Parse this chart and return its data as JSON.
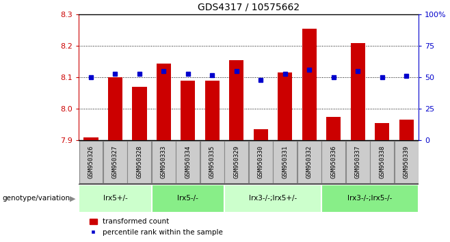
{
  "title": "GDS4317 / 10575662",
  "samples": [
    "GSM950326",
    "GSM950327",
    "GSM950328",
    "GSM950333",
    "GSM950334",
    "GSM950335",
    "GSM950329",
    "GSM950330",
    "GSM950331",
    "GSM950332",
    "GSM950336",
    "GSM950337",
    "GSM950338",
    "GSM950339"
  ],
  "bar_values": [
    7.91,
    8.1,
    8.07,
    8.145,
    8.09,
    8.09,
    8.155,
    7.935,
    8.115,
    8.255,
    7.975,
    8.21,
    7.955,
    7.965
  ],
  "percentile_values": [
    50,
    53,
    53,
    55,
    53,
    52,
    55,
    48,
    53,
    56,
    50,
    55,
    50,
    51
  ],
  "ylim_left": [
    7.9,
    8.3
  ],
  "ylim_right": [
    0,
    100
  ],
  "yticks_left": [
    7.9,
    8.0,
    8.1,
    8.2,
    8.3
  ],
  "yticks_right": [
    0,
    25,
    50,
    75,
    100
  ],
  "bar_color": "#cc0000",
  "marker_color": "#0000cc",
  "genotype_groups": [
    {
      "label": "lrx5+/-",
      "start": 0,
      "end": 3
    },
    {
      "label": "lrx5-/-",
      "start": 3,
      "end": 6
    },
    {
      "label": "lrx3-/-;lrx5+/-",
      "start": 6,
      "end": 10
    },
    {
      "label": "lrx3-/-;lrx5-/-",
      "start": 10,
      "end": 14
    }
  ],
  "genotype_label": "genotype/variation",
  "legend_bar_label": "transformed count",
  "legend_marker_label": "percentile rank within the sample",
  "bar_width": 0.6,
  "group_colors": [
    "#ccffcc",
    "#88ee88",
    "#ccffcc",
    "#88ee88"
  ],
  "tick_label_color": "#cc0000",
  "right_tick_color": "#0000cc",
  "title_fontsize": 10,
  "axis_fontsize": 8,
  "sample_box_color": "#cccccc",
  "sample_box_edge": "#888888"
}
